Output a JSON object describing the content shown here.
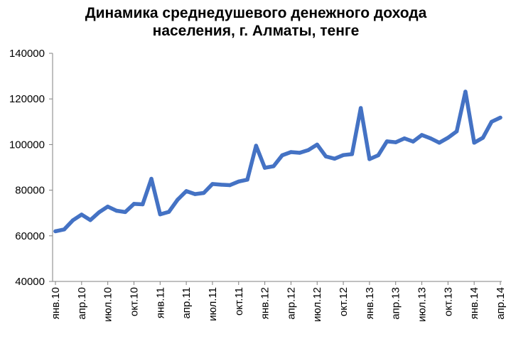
{
  "chart_data": {
    "type": "line",
    "title_lines": [
      "Динамика среднедушевого денежного дохода",
      "населения, г. Алматы, тенге"
    ],
    "xlabel": "",
    "ylabel": "",
    "ylim": [
      40000,
      140000
    ],
    "y_ticks": [
      40000,
      60000,
      80000,
      100000,
      120000,
      140000
    ],
    "y_tick_labels": [
      "40000",
      "60000",
      "80000",
      "100000",
      "120000",
      "140000"
    ],
    "x_ticks": [
      {
        "index": 0,
        "label": "янв.10"
      },
      {
        "index": 3,
        "label": "апр.10"
      },
      {
        "index": 6,
        "label": "июл.10"
      },
      {
        "index": 9,
        "label": "окт.10"
      },
      {
        "index": 12,
        "label": "янв.11"
      },
      {
        "index": 15,
        "label": "апр.11"
      },
      {
        "index": 18,
        "label": "июл.11"
      },
      {
        "index": 21,
        "label": "окт.11"
      },
      {
        "index": 24,
        "label": "янв.12"
      },
      {
        "index": 27,
        "label": "апр.12"
      },
      {
        "index": 30,
        "label": "июл.12"
      },
      {
        "index": 33,
        "label": "окт.12"
      },
      {
        "index": 36,
        "label": "янв.13"
      },
      {
        "index": 39,
        "label": "апр.13"
      },
      {
        "index": 42,
        "label": "июл.13"
      },
      {
        "index": 45,
        "label": "окт.13"
      },
      {
        "index": 48,
        "label": "янв.14"
      },
      {
        "index": 51,
        "label": "апр.14"
      }
    ],
    "grid": false,
    "legend": "none",
    "series_color": "#4472C4",
    "series": [
      {
        "values": [
          62000,
          62800,
          66800,
          69300,
          66900,
          70300,
          72800,
          71000,
          70400,
          74000,
          73800,
          85000,
          69400,
          70500,
          75800,
          79600,
          78300,
          78800,
          82700,
          82400,
          82200,
          83800,
          84600,
          99500,
          89800,
          90500,
          95300,
          96700,
          96400,
          97600,
          100000,
          94800,
          93800,
          95400,
          95800,
          116000,
          93600,
          95300,
          101400,
          101000,
          102700,
          101300,
          104200,
          102700,
          100800,
          103000,
          105800,
          123200,
          100800,
          103000,
          110000,
          111800
        ]
      }
    ]
  }
}
